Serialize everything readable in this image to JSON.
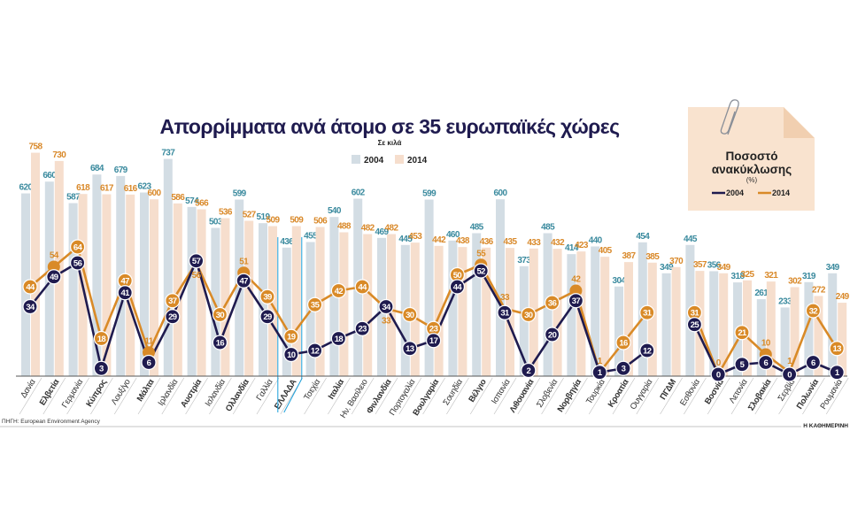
{
  "chart_data": {
    "type": "bar+line",
    "title": "Απορρίμματα ανά άτομο σε 35 ευρωπαϊκές χώρες",
    "subtitle": "Σε κιλά",
    "categories": [
      "Δανία",
      "Ελβετία",
      "Γερμανία",
      "Κύπρος",
      "Λουξ/γο",
      "Μάλτα",
      "Ιρλανδία",
      "Αυστρία",
      "Ισλανδία",
      "Ολλανδία",
      "Γαλλία",
      "ΕΛΛΑΔΑ",
      "Τσεχία",
      "Ιταλία",
      "Ην. Βασίλειο",
      "Φινλανδία",
      "Πορτογαλία",
      "Βουλγαρία",
      "Σουηδία",
      "Βέλγιο",
      "Ισπανία",
      "Λιθουανία",
      "Σλοβενία",
      "Νορβηγία",
      "Τουρκία",
      "Κροατία",
      "Ουγγαρία",
      "ΠΓΔΜ",
      "Εσθονία",
      "Βοσνία",
      "Λετονία",
      "Σλοβακία",
      "Σερβία",
      "Πολωνία",
      "Ρουμανία"
    ],
    "bold_categories": [
      "Ελβετία",
      "Κύπρος",
      "Μάλτα",
      "Αυστρία",
      "Ολλανδία",
      "Ιταλία",
      "Φινλανδία",
      "Βουλγαρία",
      "Βέλγιο",
      "Λιθουανία",
      "Νορβηγία",
      "Κροατία",
      "ΠΓΔΜ",
      "Βοσνία",
      "Σλοβακία",
      "Πολωνία"
    ],
    "highlight_category": "ΕΛΛΑΔΑ",
    "bar_series": [
      {
        "name": "2004",
        "color": "#d3dde4",
        "label_color": "#3a8a9e",
        "values": [
          620,
          660,
          587,
          684,
          679,
          623,
          737,
          574,
          503,
          599,
          519,
          436,
          455,
          540,
          602,
          469,
          445,
          599,
          460,
          485,
          600,
          373,
          485,
          414,
          440,
          304,
          454,
          349,
          445,
          356,
          318,
          261,
          233,
          319,
          349
        ]
      },
      {
        "name": "2014",
        "color": "#f6decd",
        "label_color": "#d9892a",
        "values": [
          758,
          730,
          618,
          617,
          616,
          600,
          586,
          566,
          536,
          527,
          509,
          509,
          506,
          488,
          482,
          482,
          453,
          442,
          438,
          436,
          435,
          433,
          432,
          423,
          405,
          387,
          385,
          370,
          357,
          349,
          325,
          321,
          302,
          272,
          249
        ]
      }
    ],
    "line_legend_title": "Ποσοστό ανακύκλωσης",
    "line_legend_unit": "(%)",
    "line_series": [
      {
        "name": "2004",
        "color": "#1f1b4f",
        "values": [
          34,
          49,
          56,
          3,
          41,
          6,
          29,
          57,
          16,
          47,
          29,
          10,
          12,
          18,
          23,
          34,
          13,
          17,
          44,
          52,
          31,
          2,
          20,
          37,
          1,
          3,
          12,
          null,
          25,
          0,
          5,
          6,
          0,
          6,
          1
        ]
      },
      {
        "name": "2014",
        "color": "#d98a27",
        "values": [
          44,
          54,
          64,
          18,
          47,
          11,
          37,
          56,
          30,
          51,
          39,
          19,
          35,
          42,
          44,
          33,
          30,
          23,
          50,
          55,
          33,
          30,
          36,
          42,
          1,
          16,
          31,
          null,
          31,
          0,
          21,
          10,
          1,
          32,
          13
        ]
      }
    ],
    "source": "ΠΗΓΗ: European Environment Agency",
    "credit": "Η ΚΑΘΗΜΕΡΙΝΗ"
  }
}
